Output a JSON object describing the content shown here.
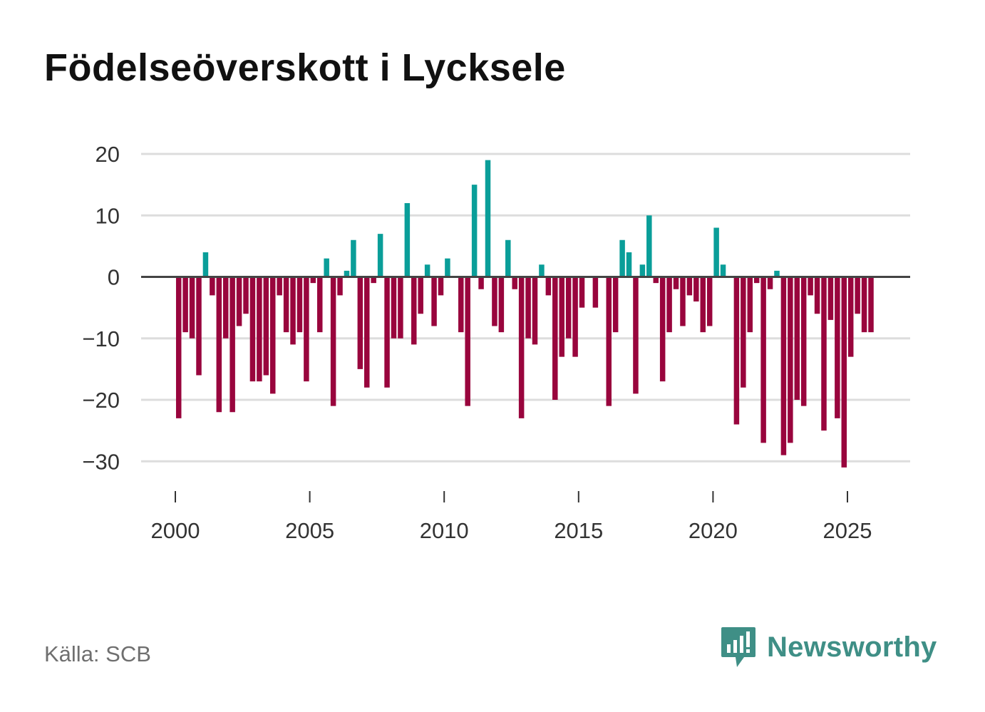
{
  "title": "Födelseöverskott i Lycksele",
  "source": "Källa: SCB",
  "brand": {
    "name": "Newsworthy",
    "icon": "bar-chart-speech-bubble-icon"
  },
  "colors": {
    "positive": "#0a9e99",
    "negative": "#99053d",
    "grid": "#dddddd",
    "zero_line": "#444444",
    "brand": "#3f8f86"
  },
  "chart_data": {
    "type": "bar",
    "title": "Födelseöverskott i Lycksele",
    "xlabel": "",
    "ylabel": "",
    "period": "quarterly",
    "start": [
      2000,
      1
    ],
    "xlim": [
      1999.6,
      2027.1
    ],
    "ylim": [
      -36,
      20
    ],
    "y_ticks": [
      20,
      10,
      0,
      -10,
      -20,
      -30
    ],
    "y_tick_labels": [
      "20",
      "10",
      "0",
      "−10",
      "−20",
      "−30"
    ],
    "x_ticks": [
      2000,
      2005,
      2010,
      2015,
      2020,
      2025
    ],
    "x_tick_labels": [
      "2000",
      "2005",
      "2010",
      "2015",
      "2020",
      "2025"
    ],
    "grid": true,
    "values": [
      -23,
      -9,
      -10,
      -16,
      4,
      -3,
      -22,
      -10,
      -22,
      -8,
      -6,
      -17,
      -17,
      -16,
      -19,
      -3,
      -9,
      -11,
      -9,
      -17,
      -1,
      -9,
      3,
      -21,
      -3,
      1,
      6,
      -15,
      -18,
      -1,
      7,
      -18,
      -10,
      -10,
      12,
      -11,
      -6,
      2,
      -8,
      -3,
      3,
      0,
      -9,
      -21,
      15,
      -2,
      19,
      -8,
      -9,
      6,
      -2,
      -23,
      -10,
      -11,
      2,
      -3,
      -20,
      -13,
      -10,
      -13,
      -5,
      0,
      -5,
      0,
      -21,
      -9,
      6,
      4,
      -19,
      2,
      10,
      -1,
      -17,
      -9,
      -2,
      -8,
      -3,
      -4,
      -9,
      -8,
      8,
      2,
      0,
      -24,
      -18,
      -9,
      -1,
      -27,
      -2,
      1,
      -29,
      -27,
      -20,
      -21,
      -3,
      -6,
      -25,
      -7,
      -23,
      -31,
      -13,
      -6,
      -9,
      -9
    ]
  }
}
